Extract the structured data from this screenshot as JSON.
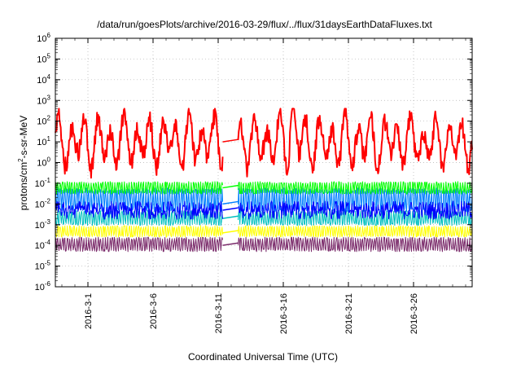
{
  "chart_data": {
    "type": "line",
    "title": "/data/run/goesPlots/archive/2016-03-29/flux/../flux/31daysEarthDataFluxes.txt",
    "xlabel": "Coordinated Universal Time (UTC)",
    "ylabel_parts": {
      "prefix": "protons/cm",
      "sup": "2",
      "suffix": "-s-sr-MeV"
    },
    "y_scale": "log",
    "ylim": [
      1e-06,
      1000000.0
    ],
    "y_ticks": [
      {
        "value": 1000000.0,
        "base": "10",
        "exp": "6"
      },
      {
        "value": 100000.0,
        "base": "10",
        "exp": "5"
      },
      {
        "value": 10000.0,
        "base": "10",
        "exp": "4"
      },
      {
        "value": 1000.0,
        "base": "10",
        "exp": "3"
      },
      {
        "value": 100.0,
        "base": "10",
        "exp": "2"
      },
      {
        "value": 10.0,
        "base": "10",
        "exp": "1"
      },
      {
        "value": 1.0,
        "base": "10",
        "exp": "0"
      },
      {
        "value": 0.1,
        "base": "10",
        "exp": "-1"
      },
      {
        "value": 0.01,
        "base": "10",
        "exp": "-2"
      },
      {
        "value": 0.001,
        "base": "10",
        "exp": "-3"
      },
      {
        "value": 0.0001,
        "base": "10",
        "exp": "-4"
      },
      {
        "value": 1e-05,
        "base": "10",
        "exp": "-5"
      },
      {
        "value": 1e-06,
        "base": "10",
        "exp": "-6"
      }
    ],
    "xlim": [
      "2016-02-27T12:00",
      "2016-03-30T12:00"
    ],
    "x_ticks": [
      {
        "date": "2016-03-01",
        "label": "2016-3-1"
      },
      {
        "date": "2016-03-06",
        "label": "2016-3-6"
      },
      {
        "date": "2016-03-11",
        "label": "2016-3-11"
      },
      {
        "date": "2016-03-16",
        "label": "2016-3-16"
      },
      {
        "date": "2016-03-21",
        "label": "2016-3-21"
      },
      {
        "date": "2016-03-26",
        "label": "2016-3-26"
      }
    ],
    "grid": true,
    "data_gap": {
      "start": "2016-03-11T09:00",
      "end": "2016-03-12T12:00"
    },
    "series": [
      {
        "color": "#7a2a6a",
        "level": 0.0001,
        "variation": "band",
        "low": 5e-05,
        "high": 0.00025
      },
      {
        "color": "#ffff00",
        "level": 0.0004,
        "variation": "band",
        "low": 0.00025,
        "high": 0.0009
      },
      {
        "color": "#00c0c0",
        "level": 0.002,
        "variation": "band",
        "low": 0.0009,
        "high": 0.005
      },
      {
        "color": "#0080ff",
        "level": 0.01,
        "variation": "band",
        "low": 0.004,
        "high": 0.06
      },
      {
        "color": "#00ff00",
        "level": 0.06,
        "variation": "band",
        "low": 0.03,
        "high": 0.12
      },
      {
        "color": "#0000ff",
        "level": 0.005,
        "variation": "noisy",
        "low": 0.002,
        "high": 0.015
      },
      {
        "color": "#ff0000",
        "level": 10,
        "variation": "diurnal",
        "low": 0.1,
        "high": 400,
        "peaks": [
          {
            "date": "2016-03-16T18:00",
            "value": 1500
          }
        ]
      }
    ],
    "line_width": 2
  }
}
